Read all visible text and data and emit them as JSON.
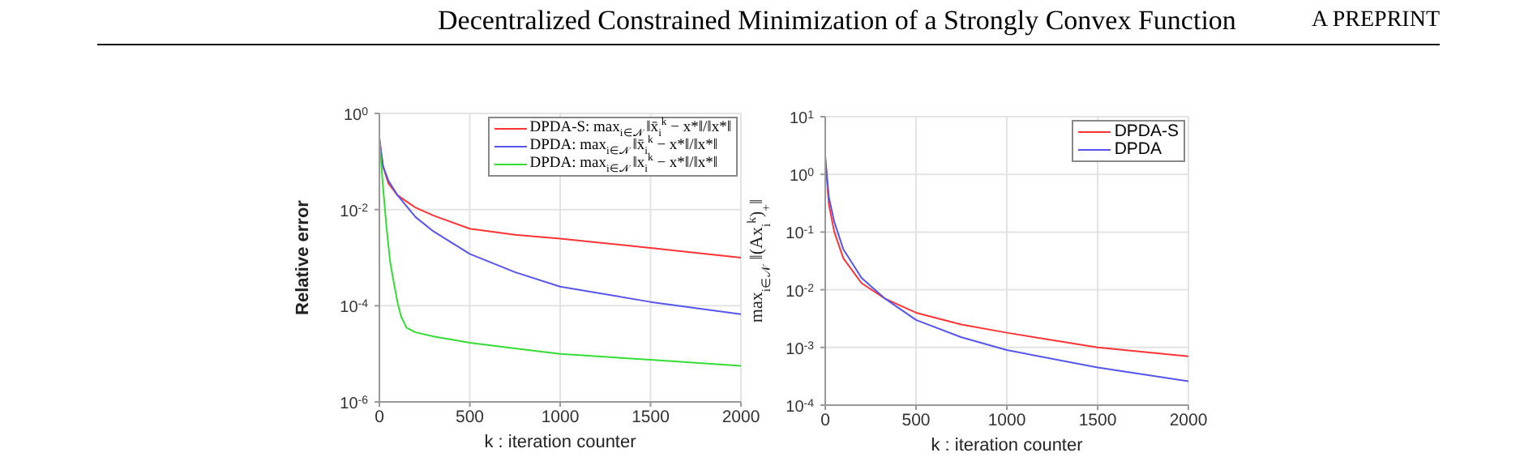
{
  "chart_data": [
    {
      "type": "line",
      "annotations": [
        "Decentralized Constrained Minimization of a Strongly Convex Function",
        "A PREPRINT"
      ],
      "xlabel": "k : iteration counter",
      "ylabel": "Relative error",
      "log": "y",
      "grid": true,
      "legend": "top right",
      "xlim": [
        0,
        2000
      ],
      "xticks": [
        0,
        500,
        1000,
        1500,
        2000
      ],
      "ylim": [
        1e-06,
        1
      ],
      "yticks": [
        {
          "value": 1,
          "label": "10$^{0}$"
        },
        {
          "value": 0.01,
          "label": "10$^{-2}$"
        },
        {
          "value": 0.0001,
          "label": "10$^{-4}$"
        },
        {
          "value": 1e-06,
          "label": "10$^{-6}$"
        }
      ],
      "series": [
        {
          "name": "DPDA-S: max$_{i∈𝒩}$ ‖x̄$_{i}$$^{k}$ − x*‖/‖x*‖",
          "color": "#ff3333",
          "x": [
            0,
            20,
            50,
            100,
            200,
            300,
            500,
            750,
            1000,
            1500,
            2000
          ],
          "values": [
            0.3,
            0.08,
            0.035,
            0.02,
            0.011,
            0.0075,
            0.004,
            0.003,
            0.0025,
            0.0016,
            0.001
          ]
        },
        {
          "name": "DPDA: max$_{i∈𝒩}$ ‖x̄$_{i}$$^{k}$ − x*‖/‖x*‖",
          "color": "#5555ee",
          "x": [
            0,
            20,
            50,
            100,
            200,
            300,
            500,
            750,
            1000,
            1500,
            2000
          ],
          "values": [
            0.3,
            0.08,
            0.04,
            0.02,
            0.007,
            0.0035,
            0.0012,
            0.0005,
            0.00025,
            0.00012,
            6.7e-05
          ]
        },
        {
          "name": "DPDA: max$_{i∈𝒩}$ ‖x$_{i}$$^{k}$ − x*‖/‖x*‖",
          "color": "#33dd33",
          "x": [
            0,
            20,
            40,
            60,
            80,
            100,
            120,
            150,
            200,
            300,
            500,
            750,
            1000,
            1500,
            2000
          ],
          "values": [
            0.3,
            0.03,
            0.004,
            0.0008,
            0.0003,
            0.00012,
            6e-05,
            3.5e-05,
            2.8e-05,
            2.3e-05,
            1.7e-05,
            1.3e-05,
            1e-05,
            7.5e-06,
            5.6e-06
          ]
        }
      ]
    },
    {
      "type": "line",
      "xlabel": "k : iteration counter",
      "ylabel": "max$_{i∈𝒩}$ ‖(Ax$_{i}$$^{k}$)$_{+}$‖",
      "log": "y",
      "grid": true,
      "legend": "top right",
      "xlim": [
        0,
        2000
      ],
      "xticks": [
        0,
        500,
        1000,
        1500,
        2000
      ],
      "ylim": [
        0.0001,
        10
      ],
      "yticks": [
        {
          "value": 10,
          "label": "10$^{1}$"
        },
        {
          "value": 1,
          "label": "10$^{0}$"
        },
        {
          "value": 0.1,
          "label": "10$^{-1}$"
        },
        {
          "value": 0.01,
          "label": "10$^{-2}$"
        },
        {
          "value": 0.001,
          "label": "10$^{-3}$"
        },
        {
          "value": 0.0001,
          "label": "10$^{-4}$"
        }
      ],
      "series": [
        {
          "name": "DPDA-S",
          "color": "#ff3333",
          "x": [
            0,
            20,
            50,
            100,
            200,
            330,
            500,
            750,
            1000,
            1500,
            2000
          ],
          "values": [
            2,
            0.3,
            0.1,
            0.035,
            0.013,
            0.007,
            0.004,
            0.0025,
            0.0018,
            0.001,
            0.0007
          ]
        },
        {
          "name": "DPDA",
          "color": "#5555ee",
          "x": [
            0,
            20,
            50,
            100,
            200,
            330,
            500,
            750,
            1000,
            1500,
            2000
          ],
          "values": [
            2,
            0.4,
            0.15,
            0.05,
            0.016,
            0.007,
            0.003,
            0.0015,
            0.0009,
            0.00045,
            0.00026
          ]
        }
      ]
    }
  ]
}
